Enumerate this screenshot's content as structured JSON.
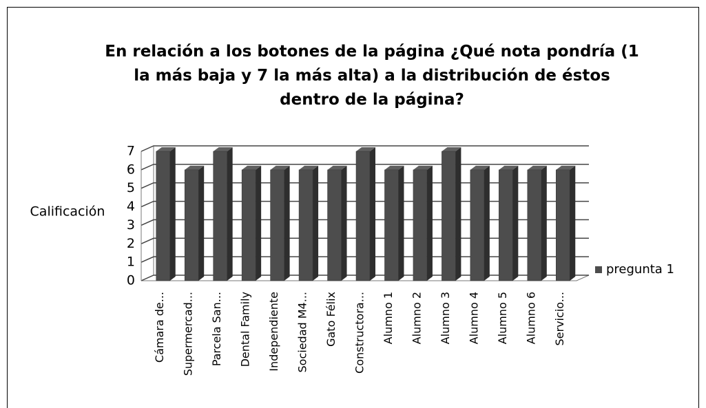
{
  "chart_data": {
    "type": "bar",
    "title": "En relación  a los botones de la página ¿Qué nota pondría (1 la más baja y 7 la más alta) a la distribución de éstos dentro de la página?",
    "y_label": "Calificación",
    "categories": [
      "Cámara de...",
      "Supermercad...",
      "Parcela San...",
      "Dental Family",
      "Independiente",
      "Sociedad M4...",
      "Gato Félix",
      "Constructora...",
      "Alumno 1",
      "Alumno 2",
      "Alumno 3",
      "Alumno 4",
      "Alumno 5",
      "Alumno 6",
      "Servicio..."
    ],
    "series": [
      {
        "name": "pregunta 1",
        "color": "#4d4d4d",
        "values": [
          7,
          6,
          7,
          6,
          6,
          6,
          6,
          7,
          6,
          6,
          7,
          6,
          6,
          6,
          6
        ]
      }
    ],
    "ylim": [
      0,
      7
    ],
    "yticks": [
      0,
      1,
      2,
      3,
      4,
      5,
      6,
      7
    ],
    "grid": true,
    "legend": "right"
  }
}
